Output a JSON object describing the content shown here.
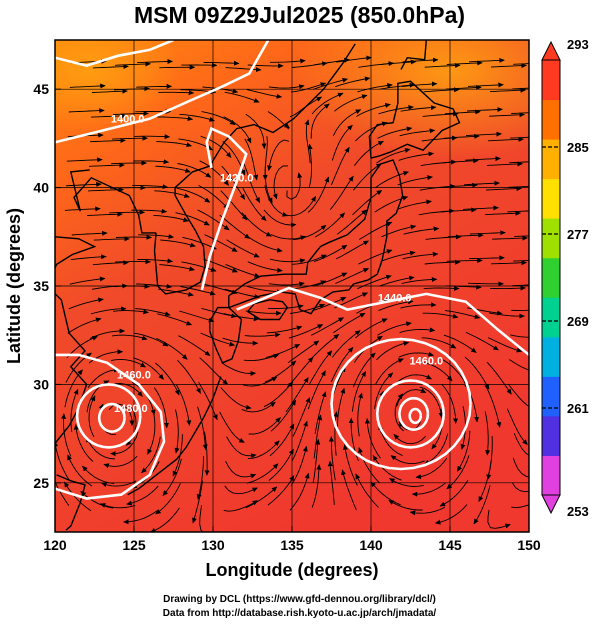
{
  "title": "MSM 09Z29Jul2025 (850.0hPa)",
  "axes": {
    "xlabel": "Longitude (degrees)",
    "ylabel": "Latitude  (degrees)",
    "xlim": [
      120,
      150
    ],
    "ylim": [
      22.5,
      47.5
    ],
    "xticks": [
      "120",
      "125",
      "130",
      "135",
      "140",
      "145",
      "150"
    ],
    "yticks": [
      "25",
      "30",
      "35",
      "40",
      "45"
    ]
  },
  "colorbar": {
    "min": 253,
    "max": 293,
    "ticks": [
      "293",
      "285",
      "277",
      "269",
      "261",
      "253"
    ],
    "colors": [
      "#e040e0",
      "#5030e0",
      "#2060ff",
      "#00b0e0",
      "#00d090",
      "#30d030",
      "#a0e000",
      "#ffe000",
      "#ffb000",
      "#ff7000",
      "#ff3a20"
    ],
    "extend": "both"
  },
  "contour_labels": [
    {
      "text": "1400.0",
      "lon": 124.6,
      "lat": 43.3
    },
    {
      "text": "1420.0",
      "lon": 131.5,
      "lat": 40.3
    },
    {
      "text": "1440.0",
      "lon": 141.5,
      "lat": 34.2
    },
    {
      "text": "1460.0",
      "lon": 143.5,
      "lat": 31.0
    },
    {
      "text": "1460.0",
      "lon": 125.0,
      "lat": 30.3
    },
    {
      "text": "1480.0",
      "lon": 124.8,
      "lat": 28.6
    }
  ],
  "credits": [
    "Drawing by DCL (https://www.gfd-dennou.org/library/dcl/)",
    "Data from http://database.rish.kyoto-u.ac.jp/arch/jmadata/"
  ]
}
